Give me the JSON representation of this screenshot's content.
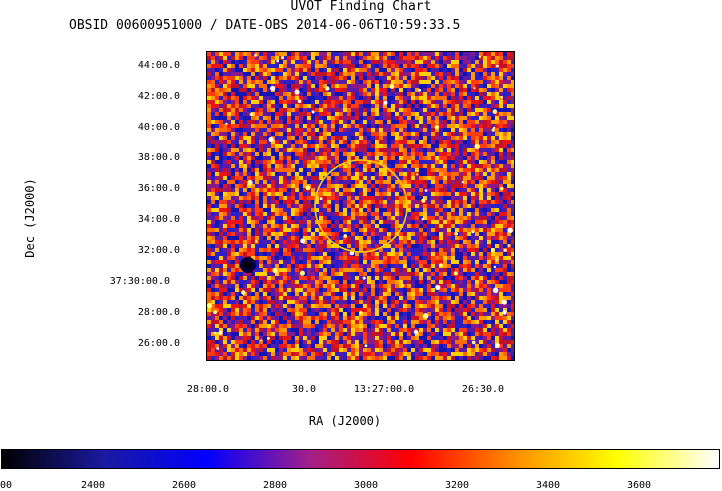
{
  "chart_data": {
    "type": "heatmap",
    "title": "UVOT Finding Chart",
    "subtitle": "OBSID 00600951000 / DATE-OBS 2014-06-06T10:59:33.5",
    "xlabel": "RA (J2000)",
    "ylabel": "Dec (J2000)",
    "x_tick_labels": [
      "28:00.0",
      "30.0",
      "13:27:00.0",
      "26:30.0"
    ],
    "y_tick_labels": [
      "44:00.0",
      "42:00.0",
      "40:00.0",
      "38:00.0",
      "36:00.0",
      "34:00.0",
      "32:00.0",
      "37:30:00.0",
      "28:00.0",
      "26:00.0"
    ],
    "colorbar": {
      "tick_labels": [
        "00",
        "2400",
        "2600",
        "2800",
        "3000",
        "3200",
        "3400",
        "3600"
      ],
      "colors": [
        "#000000",
        "#1a1aa0",
        "#0000ff",
        "#a0208a",
        "#ff0000",
        "#ff8c00",
        "#ffff00",
        "#ffffff"
      ]
    },
    "source_circle": {
      "color": "#ffcc00"
    }
  }
}
